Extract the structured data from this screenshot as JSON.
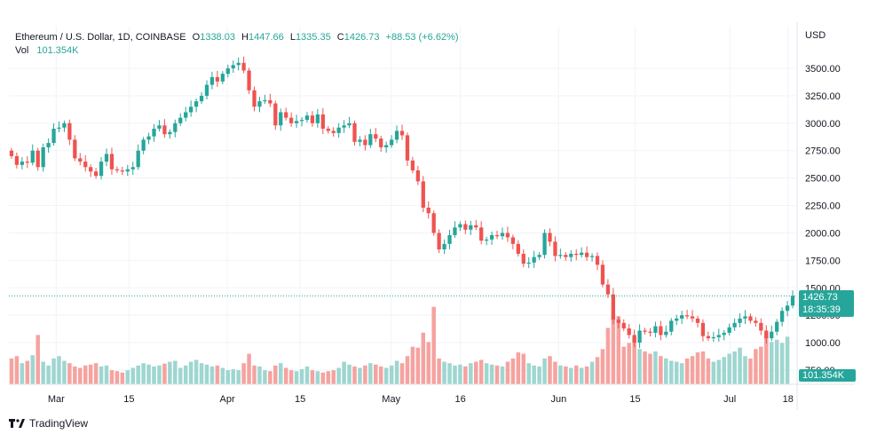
{
  "legend": {
    "symbol": "Ethereum / U.S. Dollar, 1D, COINBASE",
    "o_label": "O",
    "o_value": "1338.03",
    "h_label": "H",
    "h_value": "1447.66",
    "l_label": "L",
    "l_value": "1335.35",
    "c_label": "C",
    "c_value": "1426.73",
    "change": "+88.53 (+6.62%)",
    "vol_label": "Vol",
    "vol_value": "101.354K"
  },
  "price_tag": {
    "price": "1426.73",
    "countdown": "18:35:39"
  },
  "volume_tag": "101.354K",
  "footer": {
    "brand": "TradingView",
    "logo_icon": "tradingview-logo-icon"
  },
  "colors": {
    "up": "#26a69a",
    "down": "#ef5350",
    "up_volume": "#9ed6d0",
    "down_volume": "#f5a3a0"
  },
  "chart_data": {
    "type": "candlestick",
    "currency_label": "USD",
    "y_ticks": [
      "3500.00",
      "3250.00",
      "3000.00",
      "2750.00",
      "2500.00",
      "2250.00",
      "2000.00",
      "1750.00",
      "1500.00",
      "1250.00",
      "1000.00",
      "750.00"
    ],
    "ylim": [
      700,
      3650
    ],
    "x_ticks": [
      "Mar",
      "15",
      "Apr",
      "15",
      "May",
      "16",
      "Jun",
      "15",
      "Jul",
      "18"
    ],
    "candles_close": [
      2700,
      2620,
      2650,
      2640,
      2750,
      2600,
      2780,
      2820,
      2950,
      2960,
      3000,
      2850,
      2680,
      2650,
      2600,
      2560,
      2520,
      2650,
      2720,
      2580,
      2570,
      2560,
      2580,
      2600,
      2750,
      2850,
      2880,
      2950,
      2980,
      2900,
      2920,
      3000,
      3050,
      3100,
      3150,
      3200,
      3250,
      3350,
      3420,
      3380,
      3450,
      3500,
      3530,
      3550,
      3480,
      3300,
      3150,
      3200,
      3210,
      3180,
      2980,
      3100,
      3050,
      3000,
      3020,
      3030,
      3070,
      3000,
      3080,
      2950,
      2930,
      2910,
      2960,
      2980,
      3000,
      2830,
      2850,
      2800,
      2900,
      2860,
      2780,
      2800,
      2850,
      2930,
      2890,
      2660,
      2570,
      2470,
      2230,
      2180,
      2000,
      1850,
      1900,
      1980,
      2050,
      2080,
      2030,
      2070,
      2050,
      1930,
      1940,
      1980,
      1970,
      2000,
      1960,
      1900,
      1810,
      1720,
      1730,
      1780,
      1800,
      2000,
      1920,
      1790,
      1800,
      1780,
      1810,
      1800,
      1820,
      1780,
      1790,
      1710,
      1530,
      1440,
      1210,
      1180,
      1130,
      1070,
      1000,
      1110,
      1100,
      1090,
      1150,
      1070,
      1100,
      1200,
      1220,
      1250,
      1240,
      1220,
      1180,
      1060,
      1040,
      1050,
      1070,
      1090,
      1140,
      1180,
      1220,
      1240,
      1200,
      1180,
      1110,
      1040,
      1100,
      1190,
      1290,
      1338,
      1426.73
    ],
    "candles_open": [
      2750,
      2700,
      2620,
      2650,
      2640,
      2750,
      2600,
      2780,
      2820,
      2950,
      2960,
      3000,
      2850,
      2680,
      2650,
      2600,
      2560,
      2520,
      2650,
      2720,
      2580,
      2570,
      2560,
      2580,
      2600,
      2750,
      2850,
      2880,
      2950,
      2980,
      2900,
      2920,
      3000,
      3050,
      3100,
      3150,
      3200,
      3250,
      3350,
      3420,
      3380,
      3450,
      3500,
      3530,
      3550,
      3480,
      3300,
      3150,
      3200,
      3210,
      3180,
      2980,
      3100,
      3050,
      3000,
      3020,
      3030,
      3070,
      3000,
      3080,
      2950,
      2930,
      2910,
      2960,
      2980,
      3000,
      2830,
      2850,
      2800,
      2900,
      2860,
      2780,
      2800,
      2850,
      2930,
      2890,
      2660,
      2570,
      2470,
      2230,
      2180,
      2000,
      1850,
      1900,
      1980,
      2050,
      2080,
      2030,
      2070,
      2050,
      1930,
      1940,
      1980,
      1970,
      2000,
      1960,
      1900,
      1810,
      1720,
      1730,
      1780,
      1800,
      2000,
      1920,
      1790,
      1800,
      1780,
      1810,
      1800,
      1820,
      1780,
      1790,
      1710,
      1530,
      1440,
      1210,
      1180,
      1130,
      1070,
      1000,
      1110,
      1100,
      1090,
      1150,
      1070,
      1100,
      1200,
      1220,
      1250,
      1240,
      1220,
      1180,
      1060,
      1040,
      1050,
      1070,
      1090,
      1140,
      1180,
      1220,
      1240,
      1200,
      1180,
      1110,
      1040,
      1100,
      1190,
      1290,
      1338.03
    ],
    "volume": [
      55,
      60,
      45,
      50,
      62,
      105,
      48,
      40,
      55,
      60,
      50,
      45,
      38,
      35,
      40,
      42,
      45,
      38,
      40,
      30,
      28,
      25,
      30,
      35,
      40,
      45,
      42,
      38,
      40,
      44,
      48,
      50,
      35,
      40,
      48,
      52,
      45,
      42,
      38,
      40,
      35,
      30,
      32,
      30,
      45,
      65,
      40,
      38,
      30,
      28,
      40,
      45,
      35,
      30,
      28,
      32,
      38,
      30,
      28,
      25,
      28,
      30,
      35,
      48,
      42,
      38,
      35,
      40,
      45,
      42,
      38,
      35,
      40,
      50,
      45,
      60,
      80,
      78,
      110,
      90,
      165,
      55,
      48,
      45,
      40,
      42,
      38,
      45,
      48,
      52,
      45,
      42,
      40,
      38,
      48,
      55,
      68,
      65,
      45,
      40,
      38,
      55,
      60,
      48,
      40,
      38,
      35,
      40,
      35,
      38,
      48,
      58,
      75,
      120,
      150,
      145,
      80,
      88,
      100,
      75,
      70,
      65,
      70,
      60,
      55,
      50,
      48,
      45,
      55,
      60,
      68,
      70,
      55,
      48,
      52,
      58,
      65,
      70,
      78,
      60,
      55,
      75,
      80,
      110,
      90,
      95,
      88,
      101.354
    ]
  }
}
